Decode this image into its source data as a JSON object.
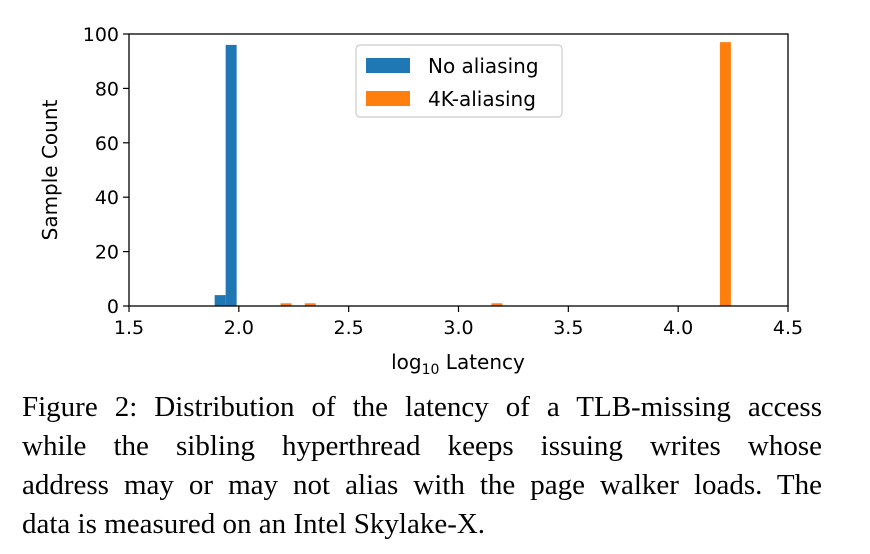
{
  "chart_data": {
    "type": "bar",
    "xlabel_base": "log",
    "xlabel_subscript": "10",
    "xlabel_rest": " Latency",
    "ylabel": "Sample Count",
    "xlim": [
      1.5,
      4.5
    ],
    "ylim": [
      0,
      100
    ],
    "xticks": [
      "1.5",
      "2.0",
      "2.5",
      "3.0",
      "3.5",
      "4.0",
      "4.5"
    ],
    "yticks": [
      "0",
      "20",
      "40",
      "60",
      "80",
      "100"
    ],
    "legend_position": "top-center",
    "series": [
      {
        "name": "No aliasing",
        "color": "#1f77b4",
        "bins": [
          {
            "x0": 1.89,
            "x1": 1.94,
            "count": 4
          },
          {
            "x0": 1.94,
            "x1": 1.99,
            "count": 96
          }
        ]
      },
      {
        "name": "4K-aliasing",
        "color": "#ff7f0e",
        "bins": [
          {
            "x0": 2.19,
            "x1": 2.24,
            "count": 1
          },
          {
            "x0": 2.3,
            "x1": 2.35,
            "count": 1
          },
          {
            "x0": 3.15,
            "x1": 3.2,
            "count": 1
          },
          {
            "x0": 4.19,
            "x1": 4.24,
            "count": 97
          }
        ]
      }
    ]
  },
  "caption": {
    "lines": [
      "Figure 2: Distribution of the latency of a TLB-missing access",
      "while the sibling hyperthread keeps issuing writes whose",
      "address may or may not alias with the page walker loads. The",
      "data is measured on an Intel Skylake-X."
    ]
  }
}
